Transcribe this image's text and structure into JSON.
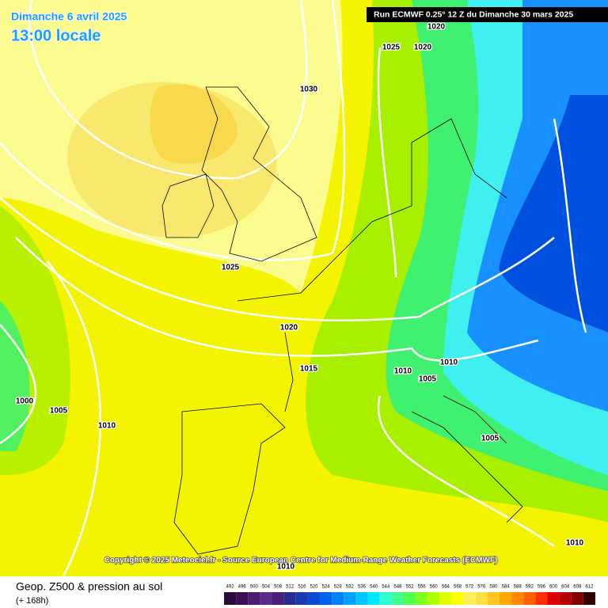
{
  "header": {
    "date": "Dimanche 6 avril 2025",
    "time": "13:00 locale",
    "run": "Run ECMWF 0.25° 12 Z du Dimanche 30 mars 2025"
  },
  "copyright": "Copyright © 2025 Meteociel.fr - Source European Centre for Medium-Range Weather Forecasts (ECMWF)",
  "footer": {
    "title": "Geop. Z500 & pression au sol",
    "range": "(+ 168h)"
  },
  "isobars": [
    1020,
    1025,
    1020,
    1030,
    1025,
    1020,
    1015,
    1010,
    1010,
    1005,
    1000,
    1005,
    1010,
    1005,
    1010,
    1010
  ],
  "legend": {
    "values": [
      492,
      496,
      500,
      504,
      508,
      512,
      516,
      520,
      524,
      528,
      532,
      536,
      540,
      544,
      548,
      552,
      556,
      560,
      564,
      568,
      572,
      576,
      580,
      584,
      588,
      592,
      596,
      600,
      604,
      608,
      612
    ],
    "colors": [
      "#2a0a3a",
      "#3c0f55",
      "#501a70",
      "#5c2a8a",
      "#4a1f7a",
      "#2a2a90",
      "#1a3ab0",
      "#0a4ad0",
      "#0060f0",
      "#0080ff",
      "#00a0ff",
      "#00c8ff",
      "#00e8ff",
      "#30ffd0",
      "#40ff90",
      "#50ff50",
      "#80ff20",
      "#b0ff00",
      "#e0ff00",
      "#ffff00",
      "#fff060",
      "#ffe040",
      "#ffc820",
      "#ffa800",
      "#ff8800",
      "#ff6000",
      "#ff3000",
      "#e00000",
      "#b00000",
      "#800000",
      "#300000"
    ]
  }
}
